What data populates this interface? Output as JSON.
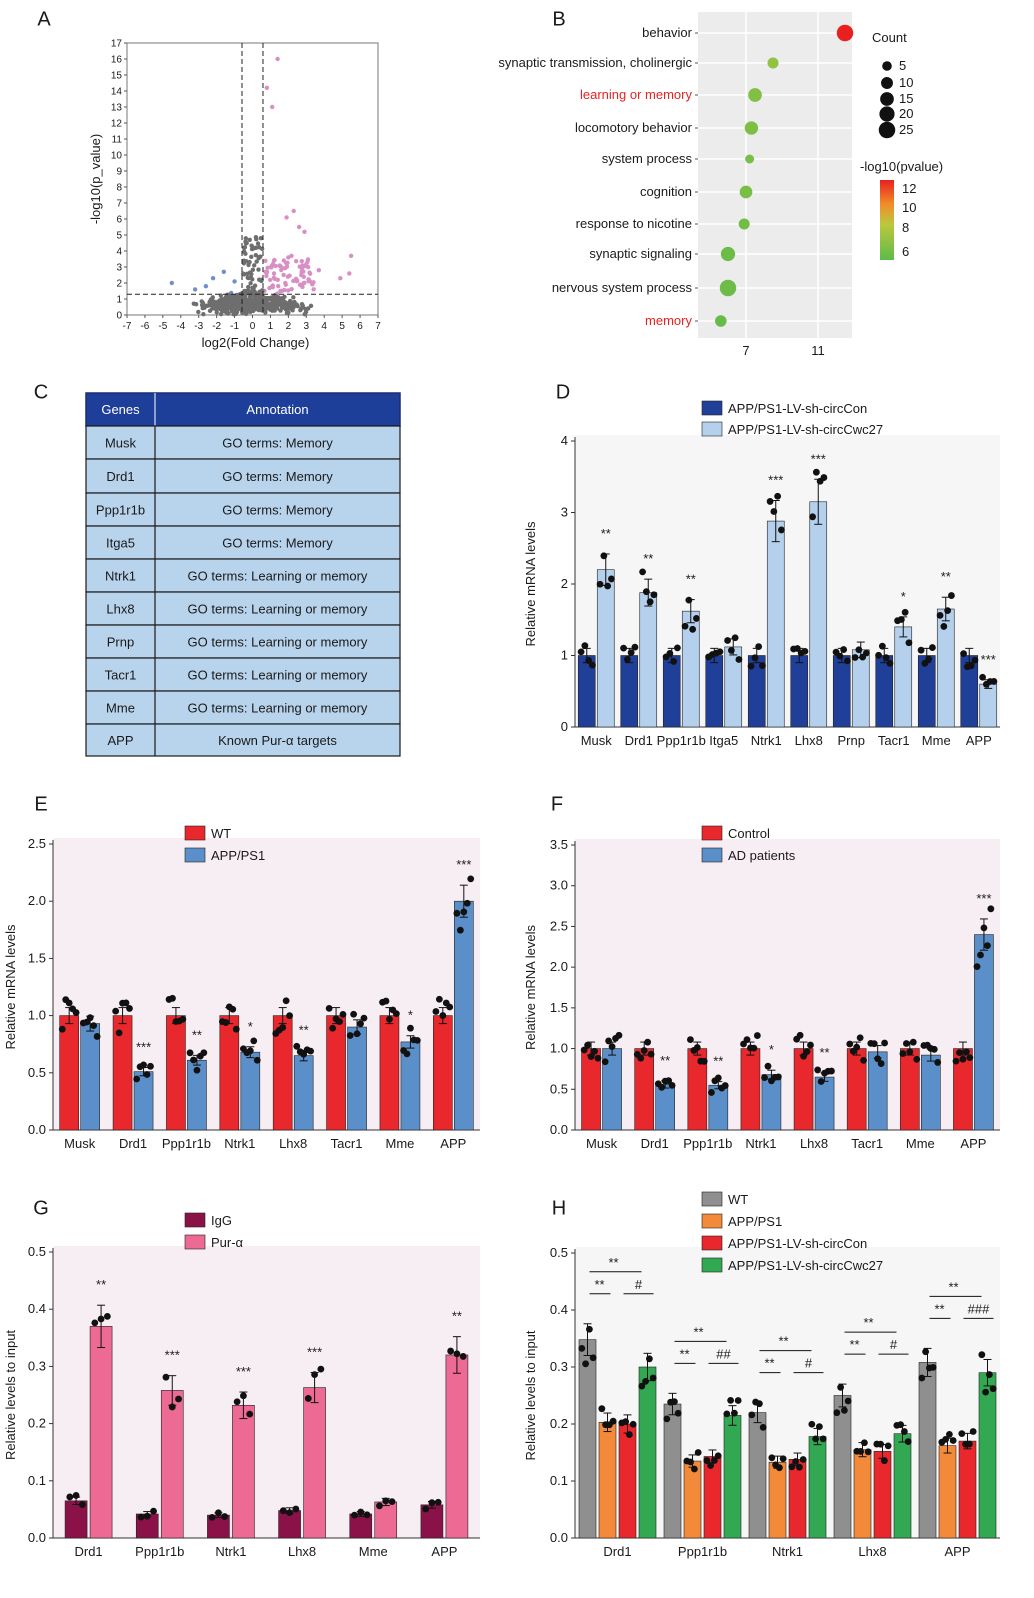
{
  "panel_letters": [
    "A",
    "B",
    "C",
    "D",
    "E",
    "F",
    "G",
    "H"
  ],
  "colors": {
    "d_ctrl": "#1f3f99",
    "d_treat": "#b4d0ec",
    "e_ctrl": "#e8282c",
    "e_treat": "#5b8fc9",
    "g_ctrl": "#8b1248",
    "g_treat": "#ec6a93",
    "h_wt": "#8f8f8f",
    "h_app": "#f38a3a",
    "h_con": "#e8282c",
    "h_cwc": "#33a853",
    "table_head": "#1e3f99",
    "table_cell": "#b8d3ec",
    "volcano_gray": "#6e6e6e",
    "volcano_up": "#d98fc3",
    "volcano_down": "#6f8fc9",
    "go_red": "#e82020"
  },
  "table": {
    "headers": [
      "Genes",
      "Annotation"
    ],
    "rows": [
      [
        "Musk",
        "GO terms: Memory"
      ],
      [
        "Drd1",
        "GO terms: Memory"
      ],
      [
        "Ppp1r1b",
        "GO terms: Memory"
      ],
      [
        "Itga5",
        "GO terms: Memory"
      ],
      [
        "Ntrk1",
        "GO terms: Learning or memory"
      ],
      [
        "Lhx8",
        "GO terms: Learning or memory"
      ],
      [
        "Prnp",
        "GO terms: Learning or memory"
      ],
      [
        "Tacr1",
        "GO terms: Learning or memory"
      ],
      [
        "Mme",
        "GO terms: Learning or memory"
      ],
      [
        "APP",
        "Known Pur-α targets"
      ]
    ]
  },
  "chart_data": [
    {
      "panel": "A",
      "type": "scatter",
      "xlabel": "log2(Fold Change)",
      "ylabel": "-log10(p_value)",
      "xlim": [
        -7,
        7
      ],
      "ylim": [
        0,
        17
      ],
      "xticks": [
        "-7",
        "-6",
        "-5",
        "-4",
        "-3",
        "-2",
        "-1",
        "0",
        "1",
        "2",
        "3",
        "4",
        "5",
        "6",
        "7"
      ],
      "yticks": [
        "0",
        "1",
        "2",
        "3",
        "4",
        "5",
        "6",
        "7",
        "8",
        "9",
        "10",
        "11",
        "12",
        "13",
        "14",
        "15",
        "16",
        "17"
      ],
      "threshold_x": [
        -0.585,
        0.585
      ],
      "threshold_y": 1.3,
      "highlighted_points": [
        {
          "x": 1.4,
          "y": 16.0,
          "group": "up"
        },
        {
          "x": 0.8,
          "y": 14.2,
          "group": "up"
        },
        {
          "x": 1.1,
          "y": 13.0,
          "group": "up"
        },
        {
          "x": 2.3,
          "y": 6.5,
          "group": "up"
        },
        {
          "x": 1.9,
          "y": 6.1,
          "group": "up"
        },
        {
          "x": 2.6,
          "y": 5.5,
          "group": "up"
        },
        {
          "x": 2.9,
          "y": 5.2,
          "group": "up"
        },
        {
          "x": 5.5,
          "y": 3.7,
          "group": "up"
        },
        {
          "x": 5.4,
          "y": 2.6,
          "group": "up"
        },
        {
          "x": 4.9,
          "y": 2.3,
          "group": "up"
        },
        {
          "x": 3.7,
          "y": 2.8,
          "group": "up"
        },
        {
          "x": 2.0,
          "y": 3.6,
          "group": "up"
        },
        {
          "x": 1.6,
          "y": 3.0,
          "group": "up"
        },
        {
          "x": 1.2,
          "y": 2.6,
          "group": "up"
        },
        {
          "x": -4.5,
          "y": 2.0,
          "group": "down"
        },
        {
          "x": -3.2,
          "y": 1.6,
          "group": "down"
        },
        {
          "x": -2.2,
          "y": 2.3,
          "group": "down"
        },
        {
          "x": -1.6,
          "y": 2.7,
          "group": "down"
        },
        {
          "x": -1.0,
          "y": 2.1,
          "group": "down"
        },
        {
          "x": -2.6,
          "y": 1.8,
          "group": "down"
        }
      ]
    },
    {
      "panel": "B",
      "type": "scatter",
      "terms": [
        "behavior",
        "synaptic transmission, cholinergic",
        "learning or memory",
        "locomotory behavior",
        "system process",
        "cognition",
        "response to nicotine",
        "synaptic signaling",
        "nervous system process",
        "memory"
      ],
      "highlighted_terms": [
        "learning or memory",
        "memory"
      ],
      "x": [
        12.5,
        8.5,
        7.5,
        7.3,
        7.2,
        7.0,
        6.9,
        6.0,
        6.0,
        5.6
      ],
      "count": [
        25,
        8,
        15,
        14,
        4,
        12,
        8,
        17,
        25,
        9
      ],
      "pvalue_log10": [
        12.5,
        7.2,
        6.7,
        6.5,
        6.4,
        6.4,
        6.2,
        6.0,
        6.0,
        5.8
      ],
      "xticks": [
        "7",
        "11"
      ],
      "size_legend_title": "Count",
      "size_legend": [
        "5",
        "10",
        "15",
        "20",
        "25"
      ],
      "color_legend_title": "-log10(pvalue)",
      "color_legend_ticks": [
        "12",
        "10",
        "8",
        "6"
      ]
    },
    {
      "panel": "D",
      "type": "bar",
      "ylabel": "Relative mRNA levels",
      "ylim": [
        0,
        4
      ],
      "yticks": [
        "0",
        "1",
        "2",
        "3",
        "4"
      ],
      "categories": [
        "Musk",
        "Drd1",
        "Ppp1r1b",
        "Itga5",
        "Ntrk1",
        "Lhx8",
        "Prnp",
        "Tacr1",
        "Mme",
        "APP"
      ],
      "series": [
        {
          "name": "APP/PS1-LV-sh-circCon",
          "values": [
            1.0,
            1.0,
            1.0,
            1.0,
            1.0,
            1.0,
            1.0,
            1.0,
            1.0,
            1.0
          ]
        },
        {
          "name": "APP/PS1-LV-sh-circCwc27",
          "values": [
            2.2,
            1.88,
            1.62,
            1.12,
            2.88,
            3.15,
            1.08,
            1.4,
            1.65,
            0.6
          ],
          "sig": [
            "**",
            "**",
            "**",
            "",
            "***",
            "***",
            "",
            "*",
            "**",
            "***"
          ]
        }
      ]
    },
    {
      "panel": "E",
      "type": "bar",
      "ylabel": "Relative mRNA levels",
      "ylim": [
        0,
        2.5
      ],
      "yticks": [
        "0.0",
        "0.5",
        "1.0",
        "1.5",
        "2.0",
        "2.5"
      ],
      "categories": [
        "Musk",
        "Drd1",
        "Ppp1r1b",
        "Ntrk1",
        "Lhx8",
        "Tacr1",
        "Mme",
        "APP"
      ],
      "series": [
        {
          "name": "WT",
          "values": [
            1.0,
            1.0,
            1.0,
            1.0,
            1.0,
            1.0,
            1.0,
            1.0
          ]
        },
        {
          "name": "APP/PS1",
          "values": [
            0.93,
            0.51,
            0.61,
            0.68,
            0.65,
            0.9,
            0.77,
            2.0
          ],
          "sig": [
            "",
            "***",
            "**",
            "*",
            "**",
            "",
            "*",
            "***"
          ]
        }
      ]
    },
    {
      "panel": "F",
      "type": "bar",
      "ylabel": "Relative mRNA levels",
      "ylim": [
        0,
        3.5
      ],
      "yticks": [
        "0.0",
        "0.5",
        "1.0",
        "1.5",
        "2.0",
        "2.5",
        "3.0",
        "3.5"
      ],
      "categories": [
        "Musk",
        "Drd1",
        "Ppp1r1b",
        "Ntrk1",
        "Lhx8",
        "Tacr1",
        "Mme",
        "APP"
      ],
      "series": [
        {
          "name": "Control",
          "values": [
            1.0,
            1.0,
            1.0,
            1.0,
            1.0,
            1.0,
            1.0,
            1.0
          ]
        },
        {
          "name": "AD patients",
          "values": [
            1.0,
            0.56,
            0.55,
            0.68,
            0.65,
            0.96,
            0.92,
            2.4
          ],
          "sig": [
            "",
            "**",
            "**",
            "*",
            "**",
            "",
            "",
            "***"
          ]
        }
      ]
    },
    {
      "panel": "G",
      "type": "bar",
      "ylabel": "Relative  levels to input",
      "ylim": [
        0,
        0.5
      ],
      "yticks": [
        "0.0",
        "0.1",
        "0.2",
        "0.3",
        "0.4",
        "0.5"
      ],
      "categories": [
        "Drd1",
        "Ppp1r1b",
        "Ntrk1",
        "Lhx8",
        "Mme",
        "APP"
      ],
      "series": [
        {
          "name": "IgG",
          "values": [
            0.065,
            0.042,
            0.04,
            0.048,
            0.042,
            0.058
          ]
        },
        {
          "name": "Pur-α",
          "values": [
            0.37,
            0.258,
            0.232,
            0.263,
            0.063,
            0.32
          ],
          "sig": [
            "**",
            "***",
            "***",
            "***",
            "",
            "**"
          ]
        }
      ]
    },
    {
      "panel": "H",
      "type": "bar",
      "ylabel": "Relative  levels to input",
      "ylim": [
        0,
        0.5
      ],
      "yticks": [
        "0.0",
        "0.1",
        "0.2",
        "0.3",
        "0.4",
        "0.5"
      ],
      "categories": [
        "Drd1",
        "Ppp1r1b",
        "Ntrk1",
        "Lhx8",
        "APP"
      ],
      "series": [
        {
          "name": "WT",
          "values": [
            0.348,
            0.235,
            0.22,
            0.25,
            0.308
          ]
        },
        {
          "name": "APP/PS1",
          "values": [
            0.203,
            0.135,
            0.133,
            0.155,
            0.162
          ]
        },
        {
          "name": "APP/PS1-LV-sh-circCon",
          "values": [
            0.2,
            0.143,
            0.138,
            0.152,
            0.17
          ]
        },
        {
          "name": "APP/PS1-LV-sh-circCwc27",
          "values": [
            0.3,
            0.215,
            0.178,
            0.183,
            0.29
          ]
        }
      ],
      "comparisons": [
        {
          "sig_short": "**",
          "sig_long": "**",
          "sig_rescue": "#"
        },
        {
          "sig_short": "**",
          "sig_long": "**",
          "sig_rescue": "##"
        },
        {
          "sig_short": "**",
          "sig_long": "**",
          "sig_rescue": "#"
        },
        {
          "sig_short": "**",
          "sig_long": "**",
          "sig_rescue": "#"
        },
        {
          "sig_short": "**",
          "sig_long": "**",
          "sig_rescue": "###"
        }
      ]
    }
  ]
}
